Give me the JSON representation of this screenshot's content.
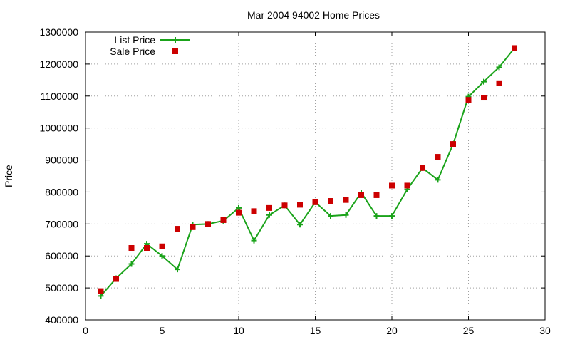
{
  "chart_data": {
    "type": "scatter",
    "title": "Mar 2004 94002 Home Prices",
    "xlabel": "",
    "ylabel": "Price",
    "xlim": [
      0,
      30
    ],
    "ylim": [
      400000,
      1300000
    ],
    "x_ticks": [
      0,
      5,
      10,
      15,
      20,
      25,
      30
    ],
    "y_ticks": [
      400000,
      500000,
      600000,
      700000,
      800000,
      900000,
      1000000,
      1100000,
      1200000,
      1300000
    ],
    "grid": true,
    "legend_position": "top-left",
    "series": [
      {
        "name": "List Price",
        "style": "linespoints",
        "marker": "plus",
        "color": "#1aa31a",
        "x": [
          1,
          2,
          3,
          4,
          5,
          6,
          7,
          8,
          9,
          10,
          11,
          12,
          13,
          14,
          15,
          16,
          17,
          18,
          19,
          20,
          21,
          22,
          23,
          24,
          25,
          26,
          27,
          28
        ],
        "y": [
          475000,
          530000,
          575000,
          638000,
          600000,
          558000,
          698000,
          700000,
          710000,
          750000,
          648000,
          728000,
          758000,
          698000,
          768000,
          725000,
          728000,
          798000,
          725000,
          725000,
          808000,
          875000,
          838000,
          950000,
          1098000,
          1145000,
          1190000,
          1250000
        ]
      },
      {
        "name": "Sale Price",
        "style": "points",
        "marker": "square",
        "color": "#cc0000",
        "x": [
          1,
          2,
          3,
          4,
          5,
          6,
          7,
          8,
          9,
          10,
          11,
          12,
          13,
          14,
          15,
          16,
          17,
          18,
          19,
          20,
          21,
          22,
          23,
          24,
          25,
          26,
          27,
          28
        ],
        "y": [
          490000,
          528000,
          625000,
          625000,
          630000,
          685000,
          690000,
          700000,
          712000,
          735000,
          740000,
          750000,
          758000,
          760000,
          768000,
          772000,
          775000,
          790000,
          790000,
          820000,
          820000,
          875000,
          910000,
          950000,
          1088000,
          1095000,
          1140000,
          1250000
        ]
      }
    ]
  }
}
